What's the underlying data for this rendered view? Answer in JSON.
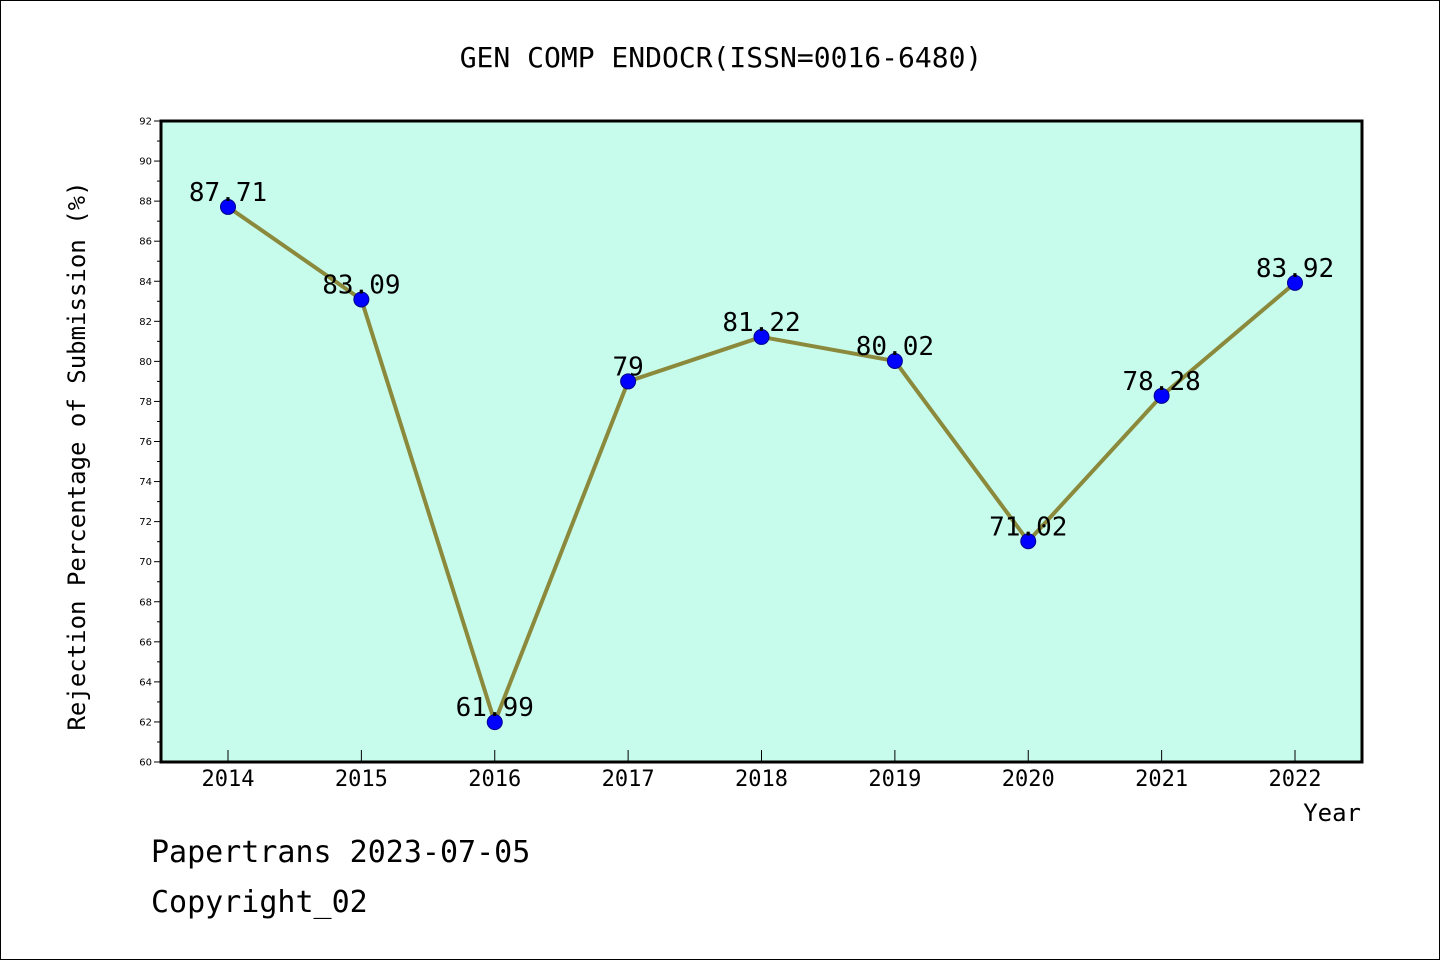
{
  "chart_data": {
    "type": "line",
    "title": "GEN COMP ENDOCR(ISSN=0016-6480)",
    "xlabel": "Year",
    "ylabel": "Rejection Percentage of Submission (%)",
    "categories": [
      "2014",
      "2015",
      "2016",
      "2017",
      "2018",
      "2019",
      "2020",
      "2021",
      "2022"
    ],
    "series": [
      {
        "values": [
          87.71,
          83.09,
          61.99,
          79,
          81.22,
          80.02,
          71.02,
          78.28,
          83.92
        ],
        "labels": [
          "87.71",
          "83.09",
          "61.99",
          "79",
          "81.22",
          "80.02",
          "71.02",
          "78.28",
          "83.92"
        ]
      }
    ],
    "ylim": [
      60,
      92
    ],
    "yticks": [
      "60",
      "62",
      "64",
      "66",
      "68",
      "70",
      "72",
      "74",
      "76",
      "78",
      "80",
      "82",
      "84",
      "86",
      "88",
      "90",
      "92"
    ],
    "grid": false,
    "legend": "none",
    "colors": {
      "plot_background": "#c7fcec",
      "line": "#8b8a3c",
      "marker": "#0000ff",
      "axis": "#000000"
    }
  },
  "footer": {
    "line1": "Papertrans 2023-07-05",
    "line2": "Copyright_02"
  }
}
